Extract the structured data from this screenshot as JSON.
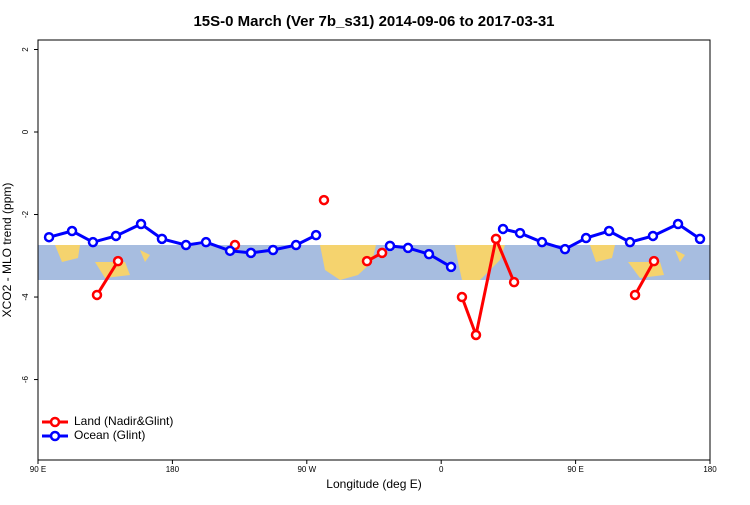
{
  "chart_data": {
    "type": "line",
    "title": "15S-0 March (Ver 7b_s31)   2014-09-06 to 2017-03-31",
    "x_label": "Longitude (deg E)",
    "y_label": "XCO2 - MLO trend (ppm)",
    "xlim": [
      90,
      540
    ],
    "xticks": [
      {
        "value": 90,
        "label": "90 E"
      },
      {
        "value": 180,
        "label": "180"
      },
      {
        "value": 270,
        "label": "90 W"
      },
      {
        "value": 360,
        "label": "0"
      },
      {
        "value": 450,
        "label": "90 E"
      },
      {
        "value": 540,
        "label": "180"
      }
    ],
    "ylim": [
      -7.95,
      2.23
    ],
    "yticks": [
      2,
      0,
      -2,
      -4,
      -6
    ],
    "legend": "bottom-left",
    "series": [
      {
        "name": "Land (Nadir&Glint)",
        "color": "#ff0000",
        "x": [
          129.5,
          143.6,
          null,
          221.9,
          null,
          281.5,
          null,
          310.3,
          320.4,
          null,
          373.9,
          383.3,
          396.7,
          408.8,
          null,
          489.8,
          502.5
        ],
        "values": [
          -3.95,
          -3.13,
          null,
          -2.74,
          null,
          -1.65,
          null,
          -3.13,
          -2.93,
          null,
          -4.0,
          -4.92,
          -2.59,
          -3.64,
          null,
          -3.95,
          -3.13
        ]
      },
      {
        "name": "Ocean (Glint)",
        "color": "#0000ff",
        "x": [
          97.4,
          112.8,
          126.8,
          142.2,
          159.0,
          173.0,
          189.1,
          202.5,
          218.6,
          232.6,
          247.4,
          262.8,
          276.2,
          null,
          325.7,
          337.8,
          351.8,
          366.6,
          null,
          401.4,
          412.8,
          427.5,
          442.9,
          457.0,
          472.4,
          486.4,
          501.8,
          518.6,
          533.3
        ],
        "values": [
          -2.55,
          -2.4,
          -2.67,
          -2.52,
          -2.23,
          -2.59,
          -2.74,
          -2.67,
          -2.88,
          -2.93,
          -2.86,
          -2.74,
          -2.5,
          null,
          -2.76,
          -2.81,
          -2.96,
          -3.27,
          null,
          -2.35,
          -2.45,
          -2.67,
          -2.84,
          -2.57,
          -2.4,
          -2.67,
          -2.52,
          -2.23,
          -2.59
        ]
      }
    ]
  }
}
